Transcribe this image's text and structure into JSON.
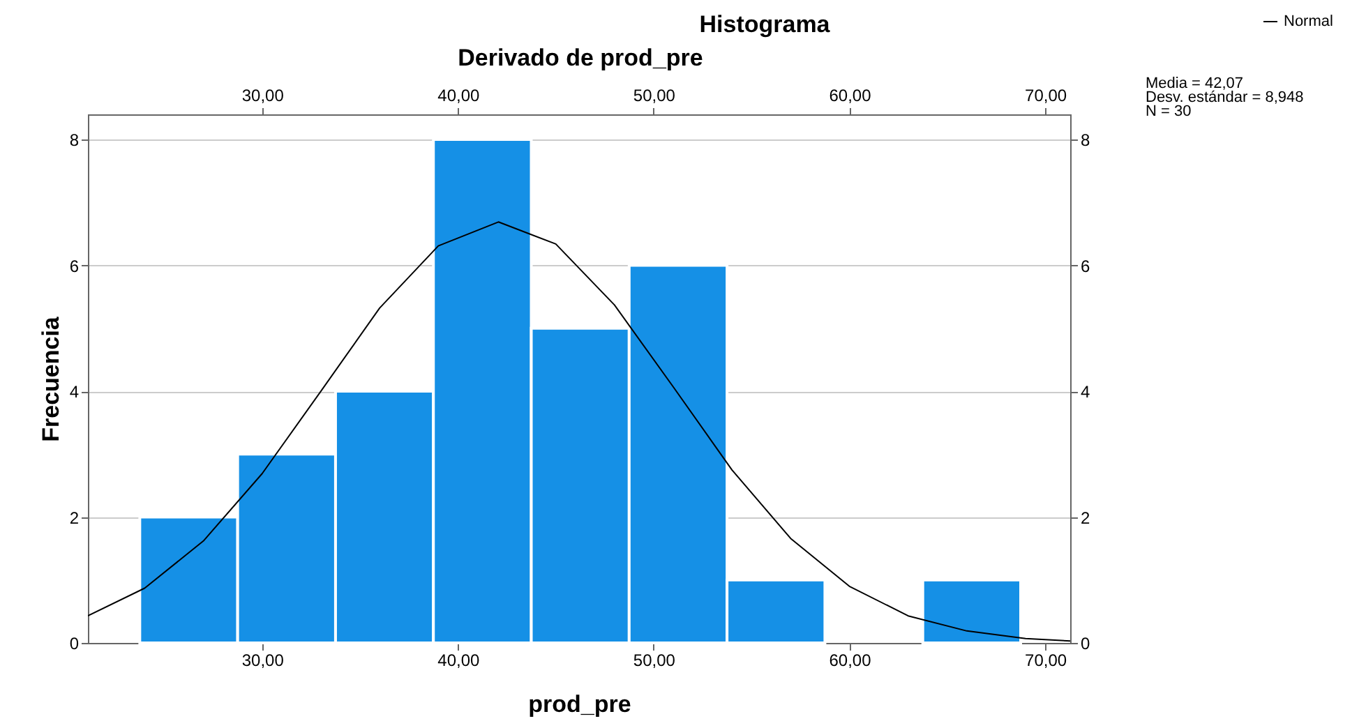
{
  "chart_data": {
    "type": "histogram",
    "title": "Histograma",
    "subtitle": "Derivado de prod_pre",
    "xlabel": "prod_pre",
    "ylabel": "Frecuencia",
    "series": [
      {
        "type": "histogram",
        "color": "#1590e6",
        "bins": [
          23.75,
          28.75,
          33.75,
          38.75,
          43.75,
          48.75,
          53.75,
          58.75,
          63.75,
          68.75
        ],
        "values": [
          2,
          3,
          4,
          8,
          5,
          6,
          1,
          0,
          1
        ]
      },
      {
        "type": "line",
        "name": "Normal",
        "color": "#000000",
        "x": [
          21.1,
          24,
          27,
          30,
          33,
          36,
          39,
          42.07,
          45,
          48,
          51,
          54,
          57,
          60,
          63,
          66,
          69,
          71.28
        ],
        "values": [
          0.43,
          0.87,
          1.62,
          2.69,
          4.0,
          5.32,
          6.31,
          6.69,
          6.34,
          5.37,
          4.07,
          2.75,
          1.66,
          0.9,
          0.43,
          0.19,
          0.07,
          0.03
        ]
      }
    ],
    "xlim": [
      21.1,
      71.28
    ],
    "xticks": [
      {
        "value": 30,
        "label": "30,00"
      },
      {
        "value": 40,
        "label": "40,00"
      },
      {
        "value": 50,
        "label": "50,00"
      },
      {
        "value": 60,
        "label": "60,00"
      },
      {
        "value": 70,
        "label": "70,00"
      }
    ],
    "x2lim": [
      21.1,
      71.28
    ],
    "x2ticks": [
      {
        "value": 30,
        "label": "30,00"
      },
      {
        "value": 40,
        "label": "40,00"
      },
      {
        "value": 50,
        "label": "50,00"
      },
      {
        "value": 60,
        "label": "60,00"
      },
      {
        "value": 70,
        "label": "70,00"
      }
    ],
    "ylim": [
      0,
      8.4
    ],
    "yticks": [
      0,
      2,
      4,
      6,
      8
    ],
    "y2lim": [
      0,
      8.4
    ],
    "y2ticks": [
      0,
      2,
      4,
      6,
      8
    ],
    "grid": "y",
    "legend": "top right",
    "annotations": [
      "Media = 42,07",
      "Desv. estándar = 8,948",
      "N = 30"
    ]
  }
}
